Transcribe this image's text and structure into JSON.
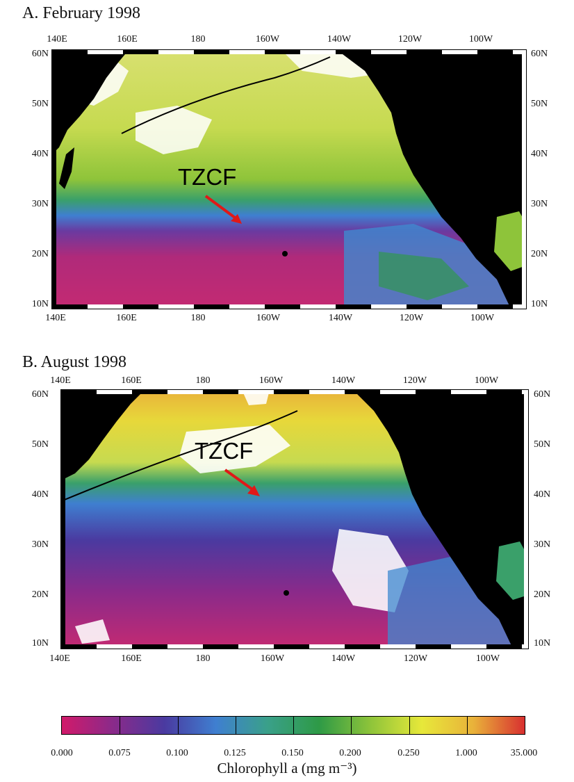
{
  "panels": [
    {
      "title": "A. February 1998",
      "lon_labels": [
        "140E",
        "160E",
        "180",
        "160W",
        "140W",
        "120W",
        "100W"
      ],
      "lat_labels": [
        "60N",
        "50N",
        "40N",
        "30N",
        "20N",
        "10N"
      ],
      "annotation": "TZCF"
    },
    {
      "title": "B. August 1998",
      "lon_labels": [
        "140E",
        "160E",
        "180",
        "160W",
        "140W",
        "120W",
        "100W"
      ],
      "lat_labels": [
        "60N",
        "50N",
        "40N",
        "30N",
        "20N",
        "10N"
      ],
      "annotation": "TZCF"
    }
  ],
  "colorbar": {
    "tick_labels": [
      "0.000",
      "0.075",
      "0.100",
      "0.125",
      "0.150",
      "0.200",
      "0.250",
      "1.000",
      "35.000"
    ],
    "title": "Chlorophyll a (mg m⁻³)",
    "colors": [
      "#d11a6a",
      "#8a2a8a",
      "#4a3aa0",
      "#3f7fd0",
      "#3aa08a",
      "#2e9a46",
      "#8ec43a",
      "#e7e83a",
      "#e9b23a",
      "#d83030"
    ]
  },
  "colors": {
    "land": "#000000",
    "arrow": "#e01818",
    "no_data": "#ffffff"
  }
}
